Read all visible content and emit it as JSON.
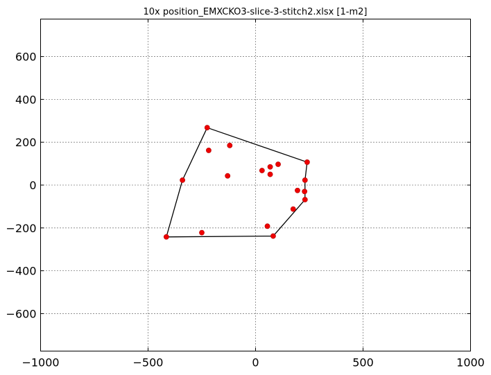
{
  "chart_data": {
    "type": "scatter",
    "title": "10x position_EMXCKO3-slice-3-stitch2.xlsx   [1-m2]",
    "xlabel": "",
    "ylabel": "",
    "xlim": [
      -1000,
      1000
    ],
    "ylim": [
      -775,
      775
    ],
    "xticks": [
      -1000,
      -500,
      0,
      500,
      1000
    ],
    "xtick_labels": [
      "−1000",
      "−500",
      "0",
      "500",
      "1000"
    ],
    "yticks": [
      -600,
      -400,
      -200,
      0,
      200,
      400,
      600
    ],
    "ytick_labels": [
      "−600",
      "−400",
      "−200",
      "0",
      "200",
      "400",
      "600"
    ],
    "grid": true,
    "series": [
      {
        "marker_color": "#ee0000",
        "x": [
          -225,
          -218,
          -120,
          -130,
          30,
          68,
          105,
          68,
          240,
          230,
          195,
          228,
          230,
          175,
          55,
          -250,
          82,
          -340,
          -415
        ],
        "y": [
          268,
          162,
          185,
          43,
          68,
          85,
          97,
          50,
          107,
          23,
          -25,
          -30,
          -68,
          -112,
          -192,
          -222,
          -238,
          23,
          -242
        ]
      }
    ],
    "hull": {
      "line_color": "#000000",
      "x": [
        -225,
        240,
        230,
        230,
        82,
        -415,
        -340,
        -225
      ],
      "y": [
        268,
        107,
        23,
        -68,
        -238,
        -242,
        23,
        268
      ]
    }
  }
}
